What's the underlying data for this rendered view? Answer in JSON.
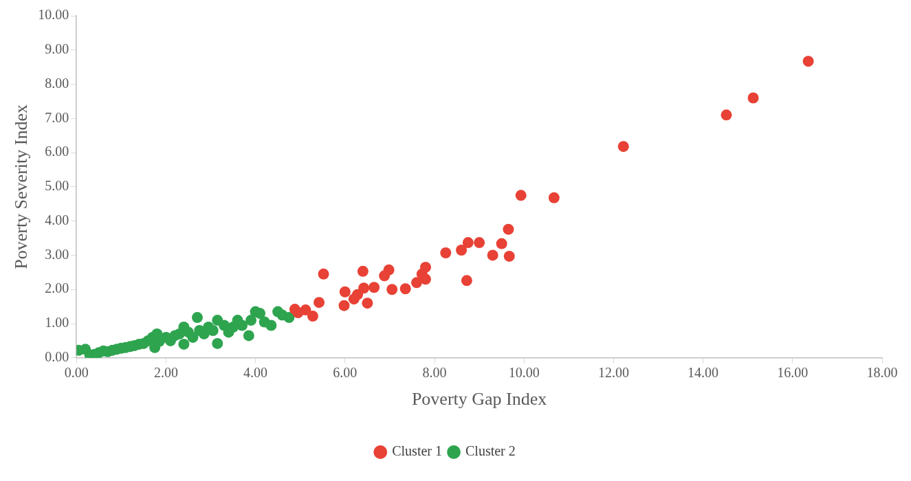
{
  "chart_data": {
    "type": "scatter",
    "xlabel": "Poverty Gap Index",
    "ylabel": "Poverty Severity Index",
    "xlim": [
      0,
      18
    ],
    "ylim": [
      0,
      10
    ],
    "xticks": [
      {
        "value": 0,
        "label": "0.00"
      },
      {
        "value": 2,
        "label": "2.00"
      },
      {
        "value": 4,
        "label": "4.00"
      },
      {
        "value": 6,
        "label": "6.00"
      },
      {
        "value": 8,
        "label": "8.00"
      },
      {
        "value": 10,
        "label": "10.00"
      },
      {
        "value": 12,
        "label": "12.00"
      },
      {
        "value": 14,
        "label": "14.00"
      },
      {
        "value": 16,
        "label": "16.00"
      },
      {
        "value": 18,
        "label": "18.00"
      }
    ],
    "yticks": [
      {
        "value": 0,
        "label": "0.00"
      },
      {
        "value": 1,
        "label": "1.00"
      },
      {
        "value": 2,
        "label": "2.00"
      },
      {
        "value": 3,
        "label": "3.00"
      },
      {
        "value": 4,
        "label": "4.00"
      },
      {
        "value": 5,
        "label": "5.00"
      },
      {
        "value": 6,
        "label": "6.00"
      },
      {
        "value": 7,
        "label": "7.00"
      },
      {
        "value": 8,
        "label": "8.00"
      },
      {
        "value": 9,
        "label": "9.00"
      },
      {
        "value": 10,
        "label": "10.00"
      }
    ],
    "grid": false,
    "legend": "bottom",
    "marker": "circle",
    "series": [
      {
        "name": "Cluster 1",
        "color": "#e84135",
        "x": [
          16.35,
          15.12,
          14.52,
          12.22,
          10.67,
          9.93,
          9.65,
          9.5,
          9.67,
          9.3,
          9.0,
          8.75,
          8.6,
          8.25,
          8.72,
          7.8,
          7.72,
          7.8,
          7.6,
          7.35,
          7.05,
          6.98,
          6.88,
          6.65,
          6.5,
          6.42,
          6.4,
          6.28,
          6.2,
          6.0,
          5.98,
          5.52,
          5.42,
          5.28,
          5.12,
          4.95,
          4.88
        ],
        "values": [
          8.67,
          7.6,
          7.1,
          6.18,
          4.68,
          4.75,
          3.76,
          3.34,
          2.97,
          3.0,
          3.37,
          3.37,
          3.15,
          3.07,
          2.26,
          2.65,
          2.45,
          2.3,
          2.2,
          2.02,
          2.0,
          2.57,
          2.4,
          2.06,
          1.6,
          2.04,
          2.53,
          1.85,
          1.72,
          1.93,
          1.53,
          2.45,
          1.62,
          1.22,
          1.4,
          1.32,
          1.42
        ]
      },
      {
        "name": "Cluster 2",
        "color": "#2ea44f",
        "x": [
          0.05,
          0.2,
          0.3,
          0.4,
          0.5,
          0.6,
          0.7,
          0.8,
          0.9,
          1.0,
          1.1,
          1.2,
          1.3,
          1.4,
          1.5,
          1.6,
          1.7,
          1.75,
          1.8,
          1.85,
          2.0,
          2.1,
          2.2,
          2.3,
          2.4,
          2.4,
          2.5,
          2.6,
          2.7,
          2.75,
          2.85,
          2.95,
          3.05,
          3.15,
          3.15,
          3.3,
          3.4,
          3.5,
          3.6,
          3.7,
          3.85,
          3.9,
          4.0,
          4.1,
          4.2,
          4.35,
          4.5,
          4.6,
          4.75
        ],
        "values": [
          0.22,
          0.25,
          0.08,
          0.1,
          0.15,
          0.2,
          0.18,
          0.22,
          0.25,
          0.28,
          0.3,
          0.33,
          0.36,
          0.4,
          0.42,
          0.5,
          0.6,
          0.3,
          0.7,
          0.48,
          0.6,
          0.5,
          0.65,
          0.7,
          0.9,
          0.4,
          0.75,
          0.6,
          1.18,
          0.8,
          0.7,
          0.9,
          0.8,
          1.1,
          0.42,
          0.95,
          0.75,
          0.9,
          1.1,
          0.95,
          0.65,
          1.1,
          1.35,
          1.3,
          1.05,
          0.95,
          1.35,
          1.25,
          1.18
        ]
      }
    ]
  }
}
